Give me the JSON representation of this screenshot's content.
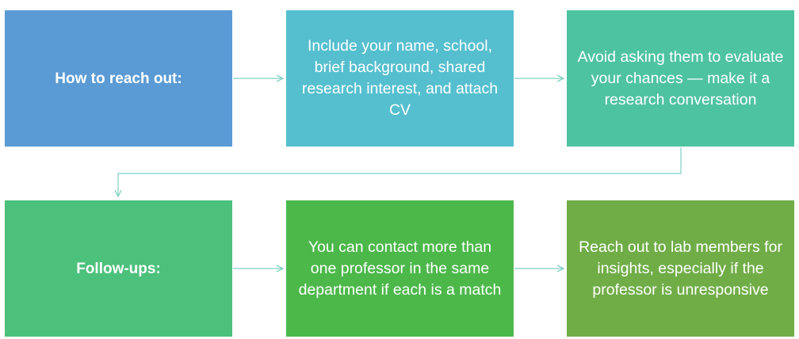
{
  "colors": {
    "box1": "#5b9bd5",
    "box2": "#55bfcf",
    "box3": "#4ec3a0",
    "box4": "#4cc17b",
    "box5": "#4cb84a",
    "box6": "#70ad47",
    "connector": "#7fd1c3"
  },
  "rows": [
    {
      "label": "How to reach out:",
      "steps": [
        "Include your name, school, brief background, shared research interest, and attach CV",
        "Avoid asking them to evaluate your chances — make it a research conversation"
      ]
    },
    {
      "label": "Follow-ups:",
      "steps": [
        "You can contact more than one professor in the same department if each is a match",
        "Reach out to lab members for insights, especially if the professor is unresponsive"
      ]
    }
  ]
}
